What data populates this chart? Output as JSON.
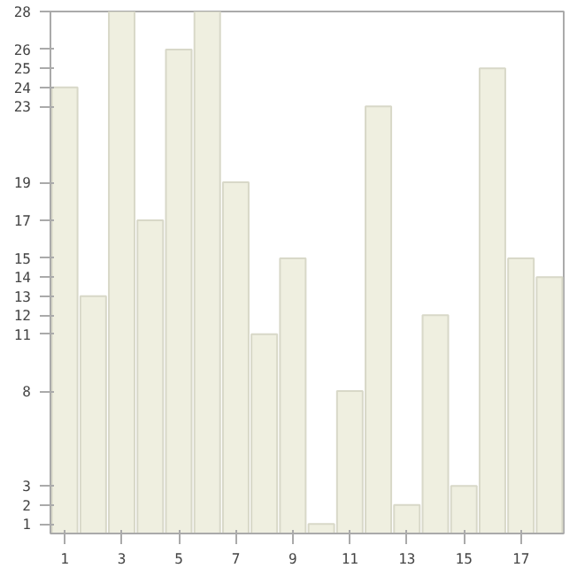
{
  "chart_data": {
    "type": "bar",
    "x": [
      1,
      2,
      3,
      4,
      5,
      6,
      7,
      8,
      9,
      10,
      11,
      12,
      13,
      14,
      15,
      16,
      17,
      18
    ],
    "values": [
      24,
      13,
      28,
      17,
      26,
      28,
      19,
      11,
      15,
      1,
      8,
      23,
      2,
      12,
      3,
      25,
      15,
      14
    ],
    "color": "#efefe0",
    "xlim": [
      0.5,
      18.5
    ],
    "xticks": [
      1,
      3,
      5,
      7,
      9,
      11,
      13,
      15,
      17
    ],
    "ylim": [
      0.5,
      28
    ],
    "yticks": [
      1,
      2,
      3,
      8,
      11,
      12,
      13,
      14,
      15,
      17,
      19,
      23,
      24,
      25,
      26,
      28
    ],
    "grid": false
  }
}
